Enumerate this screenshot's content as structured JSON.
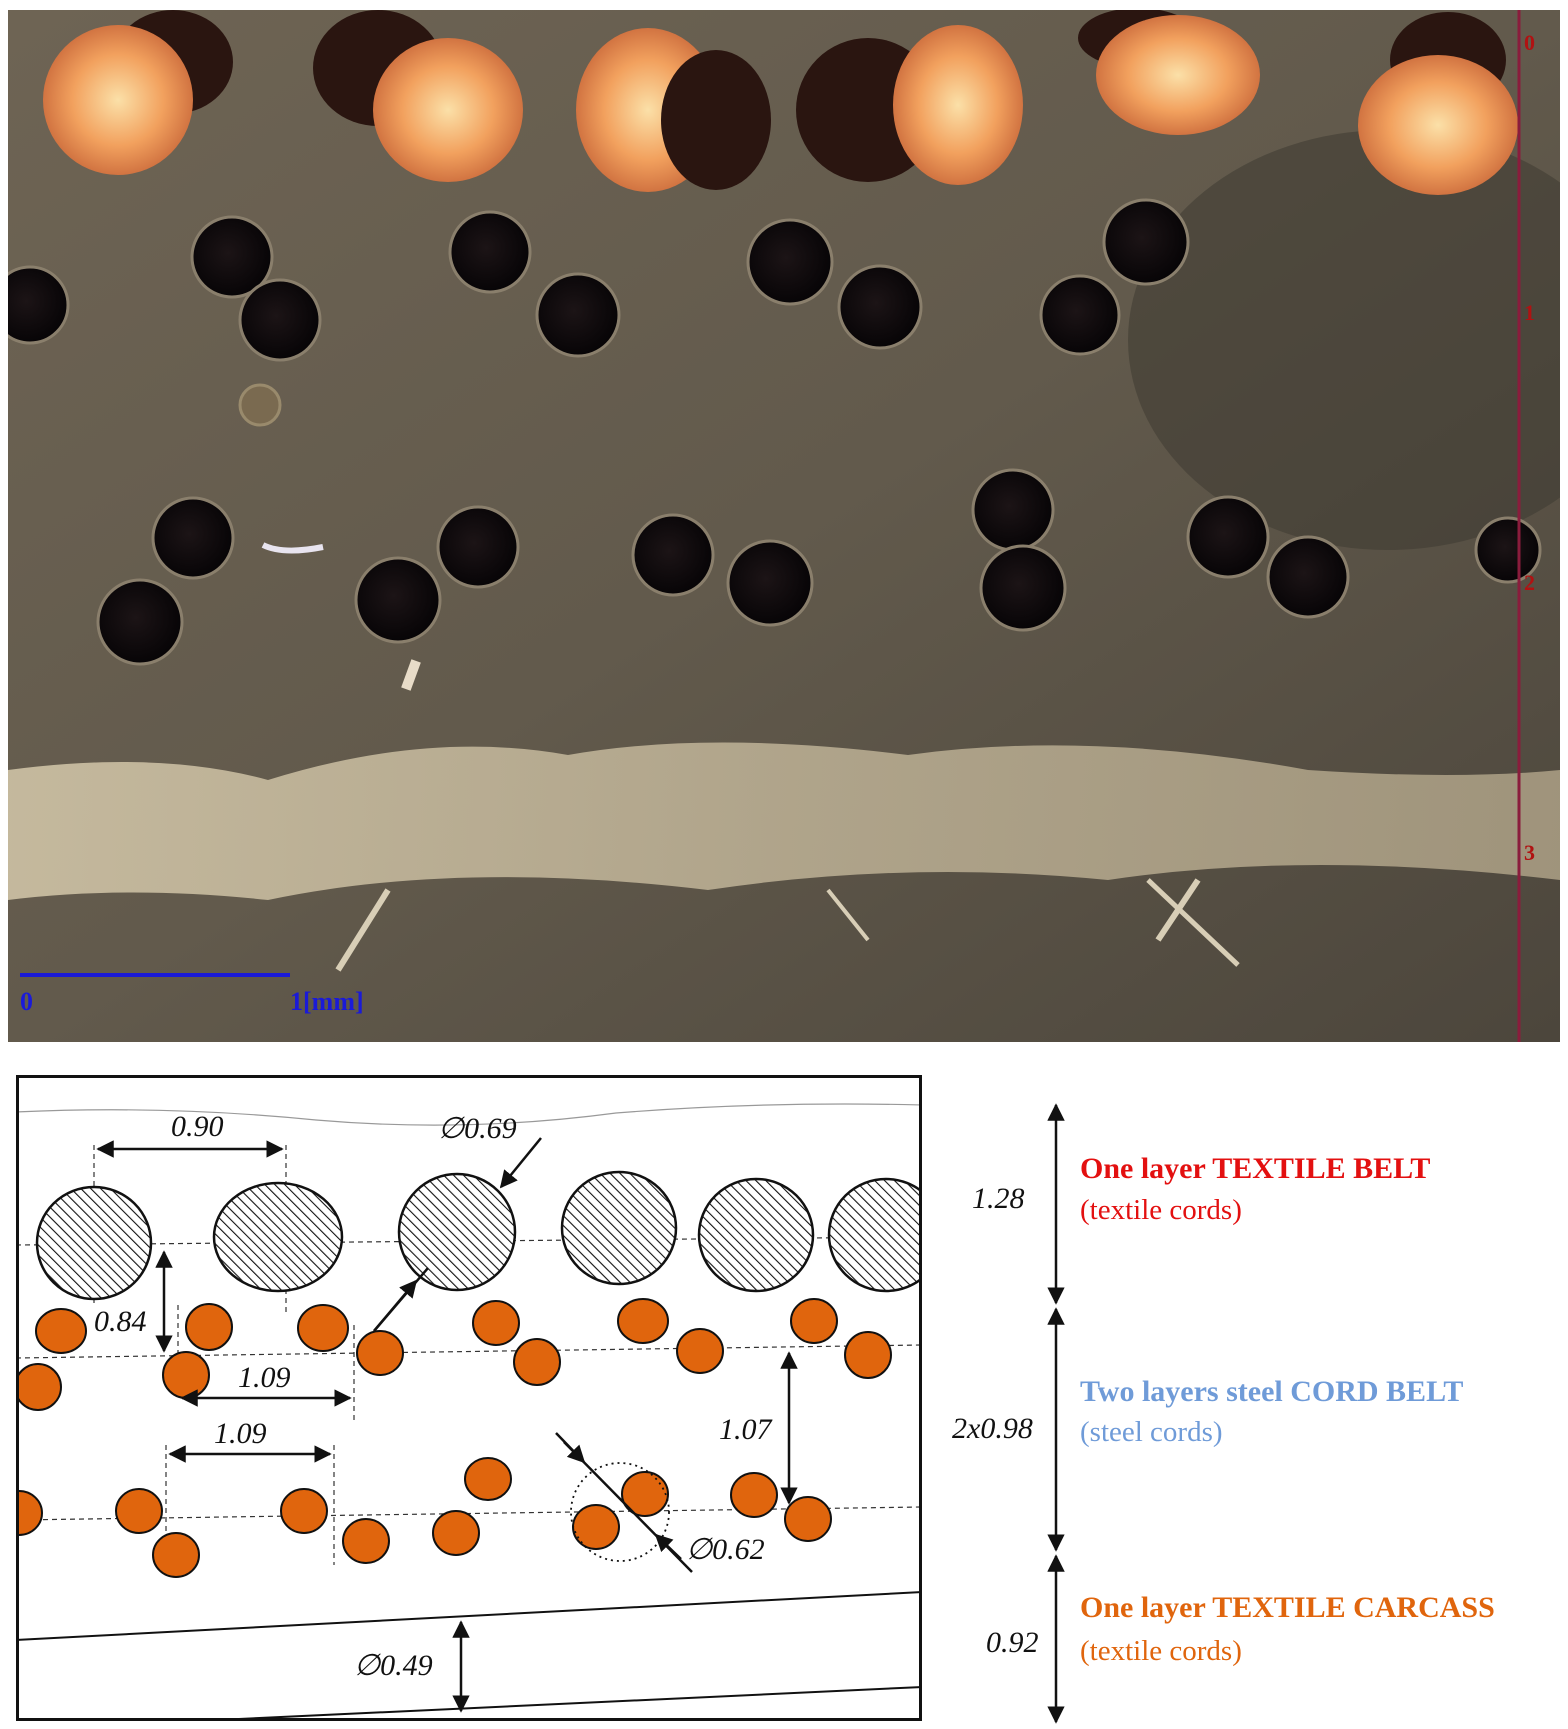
{
  "photo": {
    "scale_bar": {
      "start": "0",
      "end": "1[mm]"
    },
    "ruler_marks": [
      "0",
      "1",
      "2",
      "3"
    ]
  },
  "schematic": {
    "dims": {
      "textile_pitch": "0.90",
      "textile_dia": "∅0.69",
      "vertical_gap": "0.84",
      "steel_pitch_upper": "1.09",
      "steel_pitch_lower": "1.09",
      "steel_layer_gap": "1.07",
      "steel_dia": "∅0.62",
      "carcass_dia": "∅0.49"
    }
  },
  "legend": {
    "dims": {
      "belt": "1.28",
      "steel": "2x0.98",
      "carcass": "0.92"
    },
    "layers": [
      {
        "title": "One layer TEXTILE  BELT",
        "subtitle": "(textile cords)",
        "title_color": "#e31010",
        "subtitle_color": "#e31010"
      },
      {
        "title": "Two layers steel CORD BELT",
        "subtitle": "(steel cords)",
        "title_color": "#6f9bd8",
        "subtitle_color": "#6f9bd8"
      },
      {
        "title": "One layer  TEXTILE  CARCASS",
        "subtitle": "(textile cords)",
        "title_color": "#e0650d",
        "subtitle_color": "#e0650d"
      }
    ]
  },
  "colors": {
    "steel_cord": "#e0650d",
    "photo_matrix": "#6b6152",
    "textile_cord_photo": "#f0a060"
  }
}
